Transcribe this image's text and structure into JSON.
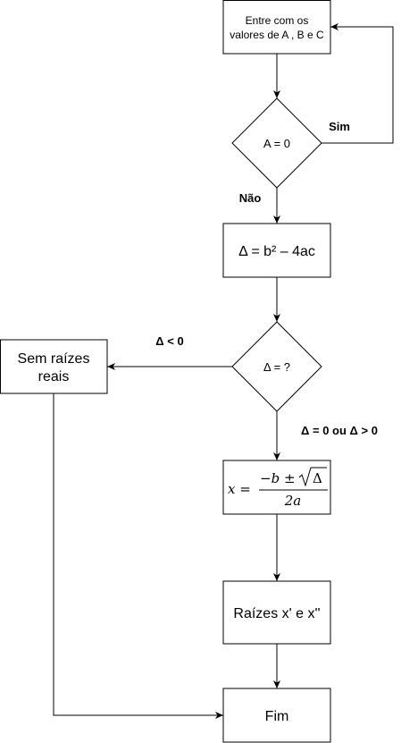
{
  "nodes": {
    "input": {
      "line1": "Entre com os",
      "line2": "valores de A , B e C"
    },
    "decision_a": {
      "label": "A = 0"
    },
    "delta_calc": {
      "label": "Δ = b² – 4ac"
    },
    "decision_delta": {
      "label": "Δ = ?"
    },
    "no_roots": {
      "line1": "Sem raízes",
      "line2": "reais"
    },
    "formula": {
      "lhs": "x =",
      "numerator": "−b ±",
      "radicand": "Δ",
      "denominator": "2a"
    },
    "roots": {
      "label": "Raízes x' e x''"
    },
    "end": {
      "label": "Fim"
    }
  },
  "edge_labels": {
    "yes": "Sim",
    "no": "Não",
    "negative": "Δ < 0",
    "non_negative": "Δ = 0 ou Δ > 0"
  }
}
